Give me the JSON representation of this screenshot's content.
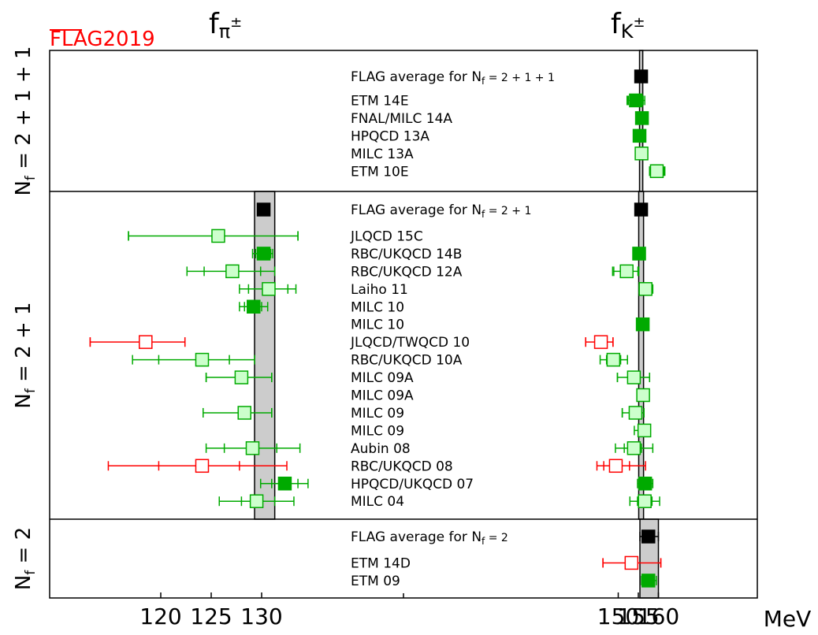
{
  "chart_data": {
    "type": "scatter",
    "subtype": "forest-plot-with-error-bars",
    "watermark": "FLAG2019",
    "column_titles": {
      "left_base": "f",
      "left_sub": "π",
      "left_sup": "±",
      "right_base": "f",
      "right_sub": "K",
      "right_sup": "±"
    },
    "xlabel": "MeV",
    "x_axis_broken": true,
    "left_panel": {
      "xlim": [
        113,
        143
      ],
      "ticks": [
        120,
        125,
        130
      ]
    },
    "right_panel": {
      "xlim": [
        140,
        165
      ],
      "ticks": [
        150,
        155,
        160
      ]
    },
    "colors": {
      "frame": "#000000",
      "band_fill": "#cccccc",
      "green": "#00aa00",
      "light_green": "#ccffcc",
      "red": "#ff0000",
      "watermark": "#ff0000",
      "average": "#000000"
    },
    "groups": [
      {
        "label_main": "N",
        "label_sub": "f",
        "label_eq": " = 2 + 1 + 1",
        "bands": {
          "pi": null,
          "k": [
            155.3,
            156.1
          ]
        },
        "rows": [
          {
            "label": "FLAG average for N",
            "label_sub": "f",
            "label_eq": " = 2 + 1 + 1",
            "kind": "avg",
            "pi": null,
            "k": {
              "v": 155.7,
              "stat": null,
              "tot": null
            }
          },
          {
            "label": "ETM 14E",
            "kind": "solid",
            "pi": null,
            "k": {
              "v": 154.4,
              "stat": [
                152.5,
                156.2
              ],
              "tot": [
                152.2,
                156.6
              ]
            }
          },
          {
            "label": "FNAL/MILC 14A",
            "kind": "solid",
            "pi": null,
            "k": {
              "v": 155.9,
              "stat": null,
              "tot": null
            }
          },
          {
            "label": "HPQCD 13A",
            "kind": "solid",
            "pi": null,
            "k": {
              "v": 155.3,
              "stat": null,
              "tot": null
            }
          },
          {
            "label": "MILC 13A",
            "kind": "light",
            "pi": null,
            "k": {
              "v": 155.8,
              "stat": null,
              "tot": null
            }
          },
          {
            "label": "ETM 10E",
            "kind": "light",
            "pi": null,
            "k": {
              "v": 159.6,
              "stat": [
                157.8,
                161.4
              ],
              "tot": [
                157.8,
                161.6
              ]
            }
          }
        ]
      },
      {
        "label_main": "N",
        "label_sub": "f",
        "label_eq": " = 2 + 1",
        "bands": {
          "pi": [
            129.3,
            131.3
          ],
          "k": [
            155.1,
            156.3
          ]
        },
        "rows": [
          {
            "label": "FLAG average for N",
            "label_sub": "f",
            "label_eq": " = 2 + 1",
            "kind": "avg",
            "pi": {
              "v": 130.2,
              "stat": null,
              "tot": [
                129.6,
                130.8
              ]
            },
            "k": {
              "v": 155.7,
              "stat": null,
              "tot": [
                155.1,
                156.3
              ]
            }
          },
          {
            "label": "JLQCD 15C",
            "kind": "light",
            "pi": {
              "v": 125.7,
              "stat": [
                116.8,
                133.6
              ],
              "tot": [
                116.8,
                133.6
              ]
            },
            "k": null
          },
          {
            "label": "RBC/UKQCD 14B",
            "kind": "solid",
            "pi": {
              "v": 130.2,
              "stat": [
                129.4,
                130.9
              ],
              "tot": [
                129.1,
                131.1
              ]
            },
            "k": {
              "v": 155.2,
              "stat": [
                154.7,
                155.7
              ],
              "tot": [
                154.4,
                156.0
              ]
            }
          },
          {
            "label": "RBC/UKQCD 12A",
            "kind": "light",
            "pi": {
              "v": 127.1,
              "stat": [
                124.3,
                129.9
              ],
              "tot": [
                122.6,
                131.3
              ]
            },
            "k": {
              "v": 152.1,
              "stat": [
                148.9,
                154.9
              ],
              "tot": [
                148.6,
                155.1
              ]
            }
          },
          {
            "label": "Laiho 11",
            "kind": "light",
            "pi": {
              "v": 130.7,
              "stat": [
                128.7,
                132.6
              ],
              "tot": [
                127.8,
                133.4
              ]
            },
            "k": {
              "v": 156.8,
              "stat": [
                155.6,
                158.0
              ],
              "tot": [
                155.2,
                158.6
              ]
            }
          },
          {
            "label": "MILC 10",
            "kind": "solid",
            "pi": {
              "v": 129.2,
              "stat": [
                128.3,
                130.0
              ],
              "tot": [
                127.8,
                130.6
              ]
            },
            "k": null
          },
          {
            "label": "MILC 10",
            "kind": "solid",
            "pi": null,
            "k": {
              "v": 156.1,
              "stat": [
                155.6,
                156.6
              ],
              "tot": [
                155.4,
                156.8
              ]
            }
          },
          {
            "label": "JLQCD/TWQCD 10",
            "kind": "open",
            "pi": {
              "v": 118.5,
              "stat": [
                113.0,
                122.4
              ],
              "tot": [
                113.0,
                122.4
              ]
            },
            "k": {
              "v": 145.7,
              "stat": [
                141.9,
                148.7
              ],
              "tot": [
                141.9,
                148.7
              ]
            }
          },
          {
            "label": "RBC/UKQCD 10A",
            "kind": "light",
            "pi": {
              "v": 124.1,
              "stat": [
                119.8,
                126.8
              ],
              "tot": [
                117.2,
                129.3
              ]
            },
            "k": {
              "v": 148.8,
              "stat": [
                147.1,
                150.6
              ],
              "tot": [
                145.5,
                152.3
              ]
            }
          },
          {
            "label": "MILC 09A",
            "kind": "light",
            "pi": {
              "v": 128.0,
              "stat": [
                124.5,
                131.0
              ],
              "tot": [
                124.5,
                131.0
              ]
            },
            "k": {
              "v": 153.9,
              "stat": [
                149.8,
                157.8
              ],
              "tot": [
                149.8,
                157.8
              ]
            }
          },
          {
            "label": "MILC 09A",
            "kind": "light",
            "pi": null,
            "k": {
              "v": 156.2,
              "stat": [
                155.6,
                156.9
              ],
              "tot": [
                155.3,
                157.2
              ]
            }
          },
          {
            "label": "MILC 09",
            "kind": "light",
            "pi": {
              "v": 128.3,
              "stat": [
                124.2,
                131.0
              ],
              "tot": [
                124.2,
                131.0
              ]
            },
            "k": {
              "v": 154.3,
              "stat": [
                151.0,
                156.4
              ],
              "tot": [
                151.0,
                156.4
              ]
            }
          },
          {
            "label": "MILC 09",
            "kind": "light",
            "pi": null,
            "k": {
              "v": 156.5,
              "stat": [
                155.8,
                157.2
              ],
              "tot": [
                154.0,
                157.7
              ]
            }
          },
          {
            "label": "Aubin 08",
            "kind": "light",
            "pi": {
              "v": 129.1,
              "stat": [
                126.3,
                131.5
              ],
              "tot": [
                124.5,
                133.8
              ]
            },
            "k": {
              "v": 153.9,
              "stat": [
                151.5,
                155.8
              ],
              "tot": [
                149.3,
                158.6
              ]
            }
          },
          {
            "label": "RBC/UKQCD 08",
            "kind": "open",
            "pi": {
              "v": 124.1,
              "stat": [
                119.8,
                127.8
              ],
              "tot": [
                114.8,
                132.5
              ]
            },
            "k": {
              "v": 149.4,
              "stat": [
                146.4,
                152.8
              ],
              "tot": [
                144.7,
                156.8
              ]
            }
          },
          {
            "label": "HPQCD/UKQCD 07",
            "kind": "solid",
            "pi": {
              "v": 132.3,
              "stat": [
                131.0,
                133.6
              ],
              "tot": [
                129.9,
                134.6
              ]
            },
            "k": {
              "v": 156.7,
              "stat": [
                155.6,
                157.7
              ],
              "tot": [
                154.8,
                158.6
              ]
            }
          },
          {
            "label": "MILC 04",
            "kind": "light",
            "pi": {
              "v": 129.5,
              "stat": [
                128.0,
                131.3
              ],
              "tot": [
                125.8,
                133.2
              ]
            },
            "k": {
              "v": 156.6,
              "stat": [
                154.8,
                158.4
              ],
              "tot": [
                152.9,
                160.3
              ]
            }
          }
        ]
      },
      {
        "label_main": "N",
        "label_sub": "f",
        "label_eq": " = 2",
        "bands": {
          "pi": null,
          "k": [
            155.4,
            160.0
          ]
        },
        "rows": [
          {
            "label": "FLAG average for N",
            "label_sub": "f",
            "label_eq": " = 2",
            "kind": "avg",
            "pi": null,
            "k": {
              "v": 157.5,
              "stat": null,
              "tot": [
                155.4,
                160.0
              ]
            }
          },
          {
            "label": "ETM 14D",
            "kind": "open",
            "pi": null,
            "k": {
              "v": 153.3,
              "stat": [
                146.2,
                160.6
              ],
              "tot": [
                146.2,
                160.6
              ]
            }
          },
          {
            "label": "ETM 09",
            "kind": "solid",
            "pi": null,
            "k": {
              "v": 157.5,
              "stat": [
                156.4,
                158.6
              ],
              "tot": [
                155.8,
                159.5
              ]
            }
          }
        ]
      }
    ]
  }
}
